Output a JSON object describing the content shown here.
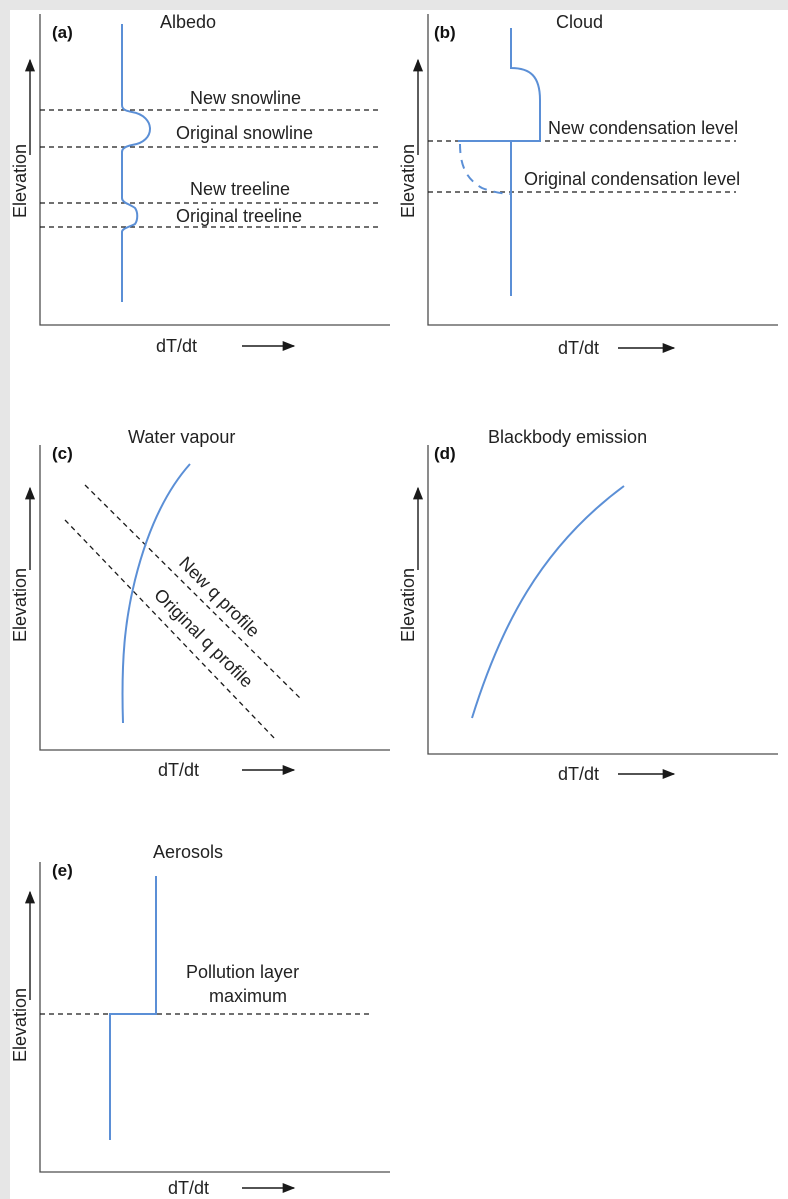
{
  "panels": {
    "a": {
      "letter": "(a)",
      "title": "Albedo",
      "ylabel": "Elevation",
      "xlabel": "dT/dt",
      "lines": [
        "New snowline",
        "Original snowline",
        "New treeline",
        "Original treeline"
      ]
    },
    "b": {
      "letter": "(b)",
      "title": "Cloud",
      "ylabel": "Elevation",
      "xlabel": "dT/dt",
      "lines": [
        "New condensation level",
        "Original condensation level"
      ]
    },
    "c": {
      "letter": "(c)",
      "title": "Water vapour",
      "ylabel": "Elevation",
      "xlabel": "dT/dt",
      "lines": [
        "New q profile",
        "Original q profile"
      ]
    },
    "d": {
      "letter": "(d)",
      "title": "Blackbody emission",
      "ylabel": "Elevation",
      "xlabel": "dT/dt"
    },
    "e": {
      "letter": "(e)",
      "title": "Aerosols",
      "ylabel": "Elevation",
      "xlabel": "dT/dt",
      "layer_label": [
        "Pollution layer",
        "maximum"
      ]
    }
  },
  "colors": {
    "curve": "#5b8fd6",
    "axis": "#4d4d4d",
    "background": "#e6e6e6"
  }
}
